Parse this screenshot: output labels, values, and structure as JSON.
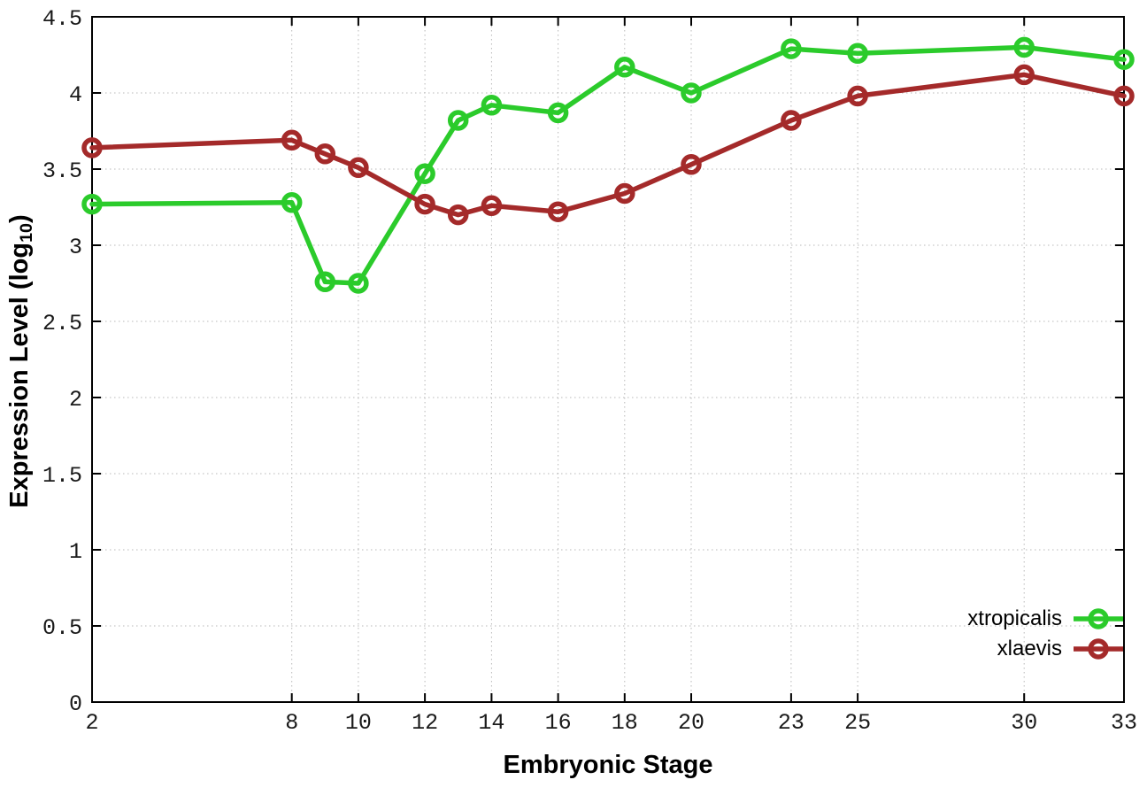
{
  "chart_data": {
    "type": "line",
    "title": "",
    "xlabel": "Embryonic Stage",
    "ylabel_prefix": "Expression Level (log",
    "ylabel_subscript": "10",
    "ylabel_suffix": ")",
    "x": [
      2,
      8,
      9,
      10,
      12,
      13,
      14,
      16,
      18,
      20,
      23,
      25,
      30,
      33
    ],
    "series": [
      {
        "name": "xtropicalis",
        "color": "#2bcb2b",
        "values": [
          3.27,
          3.28,
          2.76,
          2.75,
          3.47,
          3.82,
          3.92,
          3.87,
          4.17,
          4.0,
          4.29,
          4.26,
          4.3,
          4.22
        ]
      },
      {
        "name": "xlaevis",
        "color": "#a42a2a",
        "values": [
          3.64,
          3.69,
          3.6,
          3.51,
          3.27,
          3.2,
          3.26,
          3.22,
          3.34,
          3.53,
          3.82,
          3.98,
          4.12,
          3.98
        ]
      }
    ],
    "xlim": [
      2,
      33
    ],
    "ylim": [
      0,
      4.5
    ],
    "xticks": [
      2,
      8,
      10,
      12,
      14,
      16,
      18,
      20,
      23,
      25,
      30,
      33
    ],
    "xtick_labels": [
      "2",
      "8",
      "10",
      "12",
      "14",
      "16",
      "18",
      "20",
      "23",
      "25",
      "30",
      "33"
    ],
    "yticks": [
      0,
      0.5,
      1,
      1.5,
      2,
      2.5,
      3,
      3.5,
      4,
      4.5
    ],
    "ytick_labels": [
      "0",
      "0.5",
      "1",
      "1.5",
      "2",
      "2.5",
      "3",
      "3.5",
      "4",
      "4.5"
    ],
    "grid": true,
    "grid_style": "dotted",
    "legend_position": "bottom-right",
    "marker": "open-circle",
    "axis_color": "#000000",
    "grid_color": "#b8b8b8",
    "tick_label_color": "#1a1a1a",
    "background_color": "#ffffff"
  }
}
